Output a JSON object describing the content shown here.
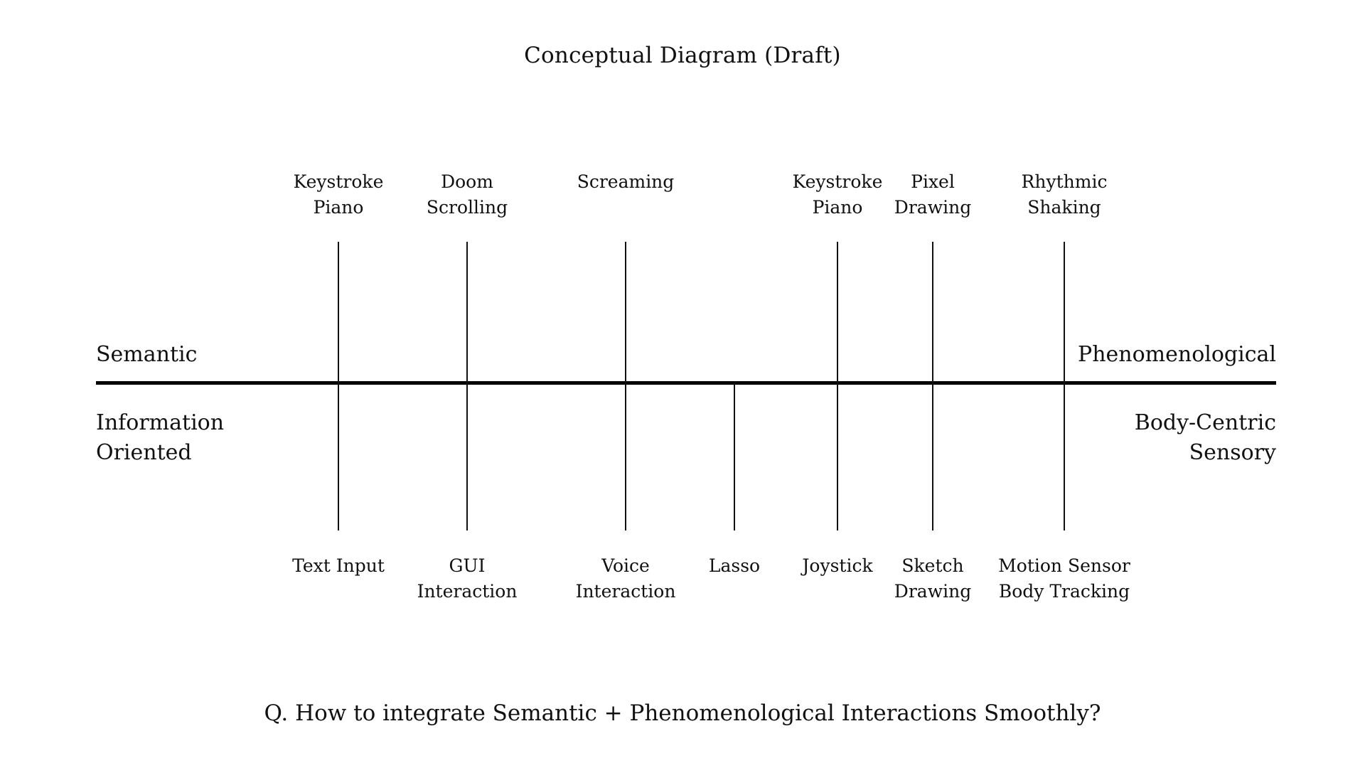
{
  "title": "Conceptual Diagram (Draft)",
  "axis": {
    "left_top": "Semantic",
    "left_bottom": [
      "Information",
      "Oriented"
    ],
    "right_top": "Phenomenological",
    "right_bottom": [
      "Body-Centric",
      "Sensory"
    ]
  },
  "top_items": [
    {
      "lines": [
        "Keystroke",
        "Piano"
      ]
    },
    {
      "lines": [
        "Doom",
        "Scrolling"
      ]
    },
    {
      "lines": [
        "Screaming"
      ]
    },
    {
      "lines": [
        "Keystroke",
        "Piano"
      ]
    },
    {
      "lines": [
        "Pixel",
        "Drawing"
      ]
    },
    {
      "lines": [
        "Rhythmic",
        "Shaking"
      ]
    }
  ],
  "bottom_items": [
    {
      "lines": [
        "Text Input"
      ]
    },
    {
      "lines": [
        "GUI",
        "Interaction"
      ]
    },
    {
      "lines": [
        "Voice",
        "Interaction"
      ]
    },
    {
      "lines": [
        "Lasso"
      ]
    },
    {
      "lines": [
        "Joystick"
      ]
    },
    {
      "lines": [
        "Sketch",
        "Drawing"
      ]
    },
    {
      "lines": [
        "Motion Sensor",
        "Body Tracking"
      ]
    }
  ],
  "question": "Q. How to integrate Semantic + Phenomenological Interactions Smoothly?"
}
